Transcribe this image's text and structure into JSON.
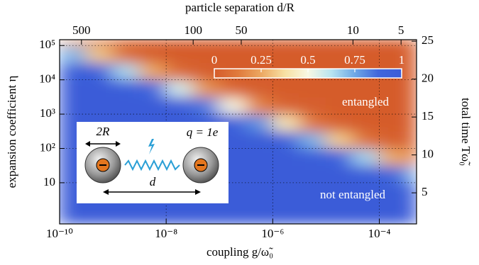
{
  "chart_data": {
    "type": "heatmap",
    "xlabel": "coupling g/ω̃₀",
    "ylabel": "expansion coefficient η",
    "x2label": "particle separation d/R",
    "y2label": "total time Tω̃₀",
    "xscale": "log",
    "yscale": "log",
    "x2scale": "log",
    "y2scale": "linear",
    "xlim": [
      1e-10,
      0.0005
    ],
    "xticks": [
      {
        "value": 1e-10,
        "label": "10⁻¹⁰"
      },
      {
        "value": 1e-08,
        "label": "10⁻⁸"
      },
      {
        "value": 1e-06,
        "label": "10⁻⁶"
      },
      {
        "value": 0.0001,
        "label": "10⁻⁴"
      }
    ],
    "ylim": [
      0.631,
      148000
    ],
    "yticks": [
      10,
      {
        "value": 100,
        "label": "10²"
      },
      {
        "value": 1000,
        "label": "10³"
      },
      {
        "value": 10000,
        "label": "10⁴"
      },
      {
        "value": 100000,
        "label": "10⁵"
      }
    ],
    "x2lim": [
      685,
      4
    ],
    "x2ticks": [
      500,
      100,
      50,
      10,
      5
    ],
    "y2lim": [
      0.9,
      25.2
    ],
    "y2ticks": [
      5,
      10,
      15,
      20,
      25
    ],
    "grid": true,
    "x_bins": [
      1e-10,
      3.162e-10,
      1e-09,
      3.162e-09,
      1e-08,
      3.162e-08,
      1e-07,
      3.162e-07,
      1e-06,
      3.162e-06,
      1e-05,
      3.162e-05,
      0.0001,
      0.0003162,
      0.0005
    ],
    "y_bins": [
      0.631,
      1,
      3.162,
      10,
      31.62,
      100,
      316.2,
      1000,
      3162,
      10000,
      31620,
      100000,
      148000
    ],
    "z": [
      [
        1,
        1,
        1,
        1,
        1,
        1,
        1,
        1,
        1,
        1,
        1,
        1,
        1,
        1
      ],
      [
        1,
        1,
        1,
        1,
        1,
        1,
        1,
        1,
        1,
        1,
        1,
        1,
        1,
        1
      ],
      [
        1,
        1,
        1,
        1,
        1,
        1,
        1,
        1,
        1,
        1,
        1,
        1,
        0.99,
        0.98
      ],
      [
        1,
        1,
        1,
        1,
        1,
        1,
        1,
        1,
        1,
        1,
        1,
        0.98,
        0.88,
        0.7
      ],
      [
        1,
        1,
        1,
        1,
        1,
        1,
        1,
        1,
        1,
        0.98,
        0.91,
        0.66,
        0.26,
        0.1
      ],
      [
        1,
        1,
        1,
        1,
        1,
        1,
        1,
        0.99,
        0.93,
        0.73,
        0.33,
        0.09,
        0.02,
        0.01
      ],
      [
        1,
        1,
        1,
        1,
        1,
        0.99,
        0.95,
        0.79,
        0.41,
        0.11,
        0.02,
        0,
        0,
        0
      ],
      [
        1,
        1,
        1,
        1,
        0.96,
        0.84,
        0.49,
        0.15,
        0.03,
        0.01,
        0,
        0,
        0,
        0
      ],
      [
        1,
        1,
        0.97,
        0.88,
        0.57,
        0.2,
        0.04,
        0.01,
        0,
        0,
        0,
        0,
        0,
        0
      ],
      [
        0.98,
        0.91,
        0.65,
        0.25,
        0.06,
        0.01,
        0,
        0,
        0,
        0,
        0,
        0,
        0,
        0
      ],
      [
        0.72,
        0.32,
        0.08,
        0.02,
        0,
        0,
        0,
        0,
        0,
        0,
        0,
        0,
        0,
        0
      ],
      [
        0.25,
        0.06,
        0,
        0,
        0,
        0,
        0,
        0,
        0,
        0,
        0,
        0,
        0,
        0
      ]
    ],
    "colormap": [
      "#d55c2c",
      "#e07a3c",
      "#eca862",
      "#f7e0a2",
      "#f8f8e4",
      "#b8e4f0",
      "#6ea8e6",
      "#4066dc",
      "#3a5cd8"
    ],
    "colorbar": {
      "lim": [
        0,
        1
      ],
      "ticks": [
        0,
        0.25,
        0.5,
        0.75,
        1
      ]
    },
    "annotations": [
      "entangled",
      "not entangled"
    ],
    "inset": {
      "labels": [
        "2R",
        "q = 1e",
        "d"
      ]
    }
  }
}
